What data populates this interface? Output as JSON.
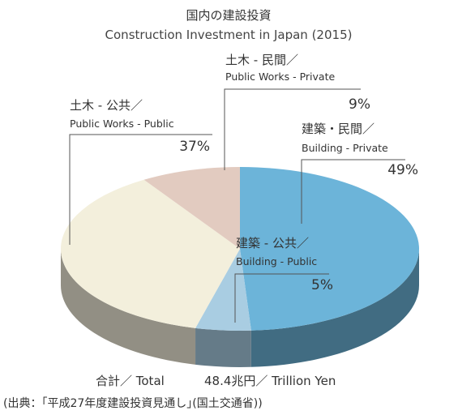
{
  "chart_data": {
    "type": "pie",
    "title": "国内の建設投資",
    "subtitle": "Construction Investment in Japan (2015)",
    "slices": [
      {
        "label_ja": "建築・民間／",
        "label_en": "Building - Private",
        "value": 49,
        "value_label": "49%",
        "color": "#6cb4d9"
      },
      {
        "label_ja": "建築 - 公共／",
        "label_en": "Building - Public",
        "value": 5,
        "value_label": "5%",
        "color": "#a9cde2"
      },
      {
        "label_ja": "土木 - 公共／",
        "label_en": "Public Works - Public",
        "value": 37,
        "value_label": "37%",
        "color": "#f3efdc"
      },
      {
        "label_ja": "土木 - 民間／",
        "label_en": "Public Works - Private",
        "value": 9,
        "value_label": "9%",
        "color": "#e2cbc0"
      }
    ],
    "total_label": "合計／ Total",
    "total_value": "48.4兆円／ Trillion Yen",
    "source": "(出典：｢平成27年度建設投資見通し｣(国土交通省))"
  }
}
